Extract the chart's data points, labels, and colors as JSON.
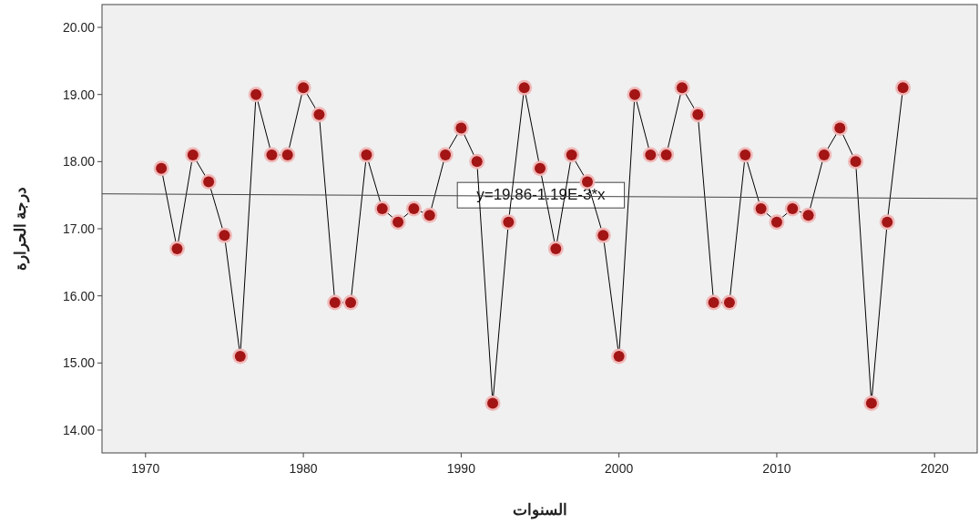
{
  "chart_data": {
    "type": "line",
    "xlabel": "السنوات",
    "ylabel": "درجة الحرارة",
    "xlim": [
      1967.24,
      2022.7
    ],
    "ylim": [
      13.66,
      20.34
    ],
    "xticks": [
      1970,
      1980,
      1990,
      2000,
      2010,
      2020
    ],
    "yticks": [
      {
        "value": 14,
        "label": "14.00"
      },
      {
        "value": 15,
        "label": "15.00"
      },
      {
        "value": 16,
        "label": "16.00"
      },
      {
        "value": 17,
        "label": "17.00"
      },
      {
        "value": 18,
        "label": "18.00"
      },
      {
        "value": 19,
        "label": "19.00"
      },
      {
        "value": 20,
        "label": "20.00"
      }
    ],
    "grid": false,
    "series": [
      {
        "color": "#a31515",
        "marker": "circle",
        "x": [
          1971,
          1972,
          1973,
          1974,
          1975,
          1976,
          1977,
          1978,
          1979,
          1980,
          1981,
          1982,
          1983,
          1984,
          1985,
          1986,
          1987,
          1988,
          1989,
          1990,
          1991,
          1992,
          1993,
          1994,
          1995,
          1996,
          1997,
          1998,
          1999,
          2000,
          2001,
          2002,
          2003,
          2004,
          2005,
          2006,
          2007,
          2008,
          2009,
          2010,
          2011,
          2012,
          2013,
          2014,
          2015,
          2016,
          2017,
          2018
        ],
        "values": [
          17.9,
          16.7,
          18.1,
          17.7,
          16.9,
          15.1,
          19.0,
          18.1,
          18.1,
          19.1,
          18.7,
          15.9,
          15.9,
          18.1,
          17.3,
          17.1,
          17.3,
          17.2,
          18.1,
          18.5,
          18.0,
          14.4,
          17.1,
          19.1,
          17.9,
          16.7,
          18.1,
          17.7,
          16.9,
          15.1,
          19.0,
          18.1,
          18.1,
          19.1,
          18.7,
          15.9,
          15.9,
          18.1,
          17.3,
          17.1,
          17.3,
          17.2,
          18.1,
          18.5,
          18.0,
          14.4,
          17.1,
          19.1
        ]
      },
      {
        "type": "line",
        "color": "#444444",
        "marker": "none",
        "x": [
          1967.24,
          2022.7
        ],
        "values": [
          17.52,
          17.45
        ]
      }
    ],
    "annotations": [
      {
        "text": "y=19.86-1.19E-3*x",
        "x": 1995.05,
        "y": 17.5
      }
    ]
  }
}
